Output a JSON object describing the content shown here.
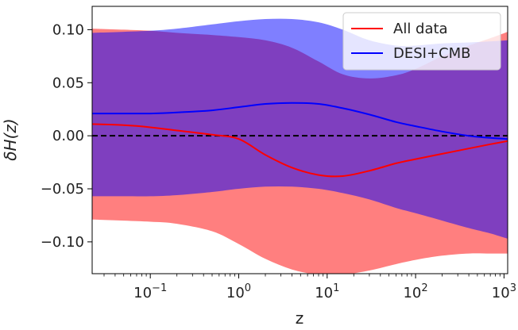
{
  "chart_data": {
    "type": "area",
    "xlabel": "z",
    "ylabel": "δH(z)",
    "xscale": "log",
    "xlim": [
      0.022,
      1100
    ],
    "ylim": [
      -0.13,
      0.122
    ],
    "x_ticks": [
      {
        "value": 0.1,
        "base": "10",
        "exp": "−1"
      },
      {
        "value": 1,
        "base": "10",
        "exp": "0"
      },
      {
        "value": 10,
        "base": "10",
        "exp": "1"
      },
      {
        "value": 100,
        "base": "10",
        "exp": "2"
      },
      {
        "value": 1000,
        "base": "10",
        "exp": "3"
      }
    ],
    "y_ticks": [
      {
        "value": 0.1,
        "label": "0.10"
      },
      {
        "value": 0.05,
        "label": "0.05"
      },
      {
        "value": 0.0,
        "label": "0.00"
      },
      {
        "value": -0.05,
        "label": "−0.05"
      },
      {
        "value": -0.1,
        "label": "−0.10"
      }
    ],
    "legend_position": "top-right",
    "grid": false,
    "reference_line": {
      "y": 0,
      "style": "dashed",
      "color": "#000000"
    },
    "series": [
      {
        "name": "All data",
        "color": "#ff0000",
        "fill_color": "#ff0000",
        "fill_opacity": 0.5,
        "x": [
          0.022,
          0.05,
          0.1,
          0.2,
          0.5,
          1,
          2,
          4,
          8,
          15,
          30,
          60,
          100,
          200,
          400,
          700,
          1100
        ],
        "y": [
          0.011,
          0.01,
          0.008,
          0.005,
          0.001,
          -0.003,
          -0.018,
          -0.03,
          -0.037,
          -0.038,
          -0.033,
          -0.026,
          -0.022,
          -0.017,
          -0.012,
          -0.008,
          -0.005
        ],
        "upper": [
          0.101,
          0.1,
          0.099,
          0.097,
          0.095,
          0.093,
          0.09,
          0.083,
          0.07,
          0.058,
          0.054,
          0.057,
          0.063,
          0.075,
          0.085,
          0.092,
          0.098
        ],
        "lower": [
          -0.079,
          -0.08,
          -0.081,
          -0.083,
          -0.09,
          -0.102,
          -0.116,
          -0.126,
          -0.131,
          -0.131,
          -0.127,
          -0.121,
          -0.117,
          -0.113,
          -0.111,
          -0.111,
          -0.111
        ]
      },
      {
        "name": "DESI+CMB",
        "color": "#0000ff",
        "fill_color": "#0000ff",
        "fill_opacity": 0.5,
        "x": [
          0.022,
          0.05,
          0.1,
          0.2,
          0.5,
          1,
          2,
          4,
          8,
          15,
          30,
          60,
          100,
          200,
          400,
          700,
          1100
        ],
        "y": [
          0.021,
          0.021,
          0.021,
          0.022,
          0.024,
          0.027,
          0.03,
          0.031,
          0.03,
          0.026,
          0.02,
          0.013,
          0.009,
          0.004,
          0.0,
          -0.002,
          -0.003
        ],
        "upper": [
          0.097,
          0.098,
          0.099,
          0.101,
          0.105,
          0.108,
          0.11,
          0.11,
          0.107,
          0.1,
          0.09,
          0.085,
          0.085,
          0.087,
          0.088,
          0.089,
          0.09
        ],
        "lower": [
          -0.057,
          -0.057,
          -0.057,
          -0.056,
          -0.053,
          -0.05,
          -0.048,
          -0.048,
          -0.05,
          -0.054,
          -0.06,
          -0.068,
          -0.073,
          -0.08,
          -0.087,
          -0.092,
          -0.097
        ]
      }
    ]
  }
}
